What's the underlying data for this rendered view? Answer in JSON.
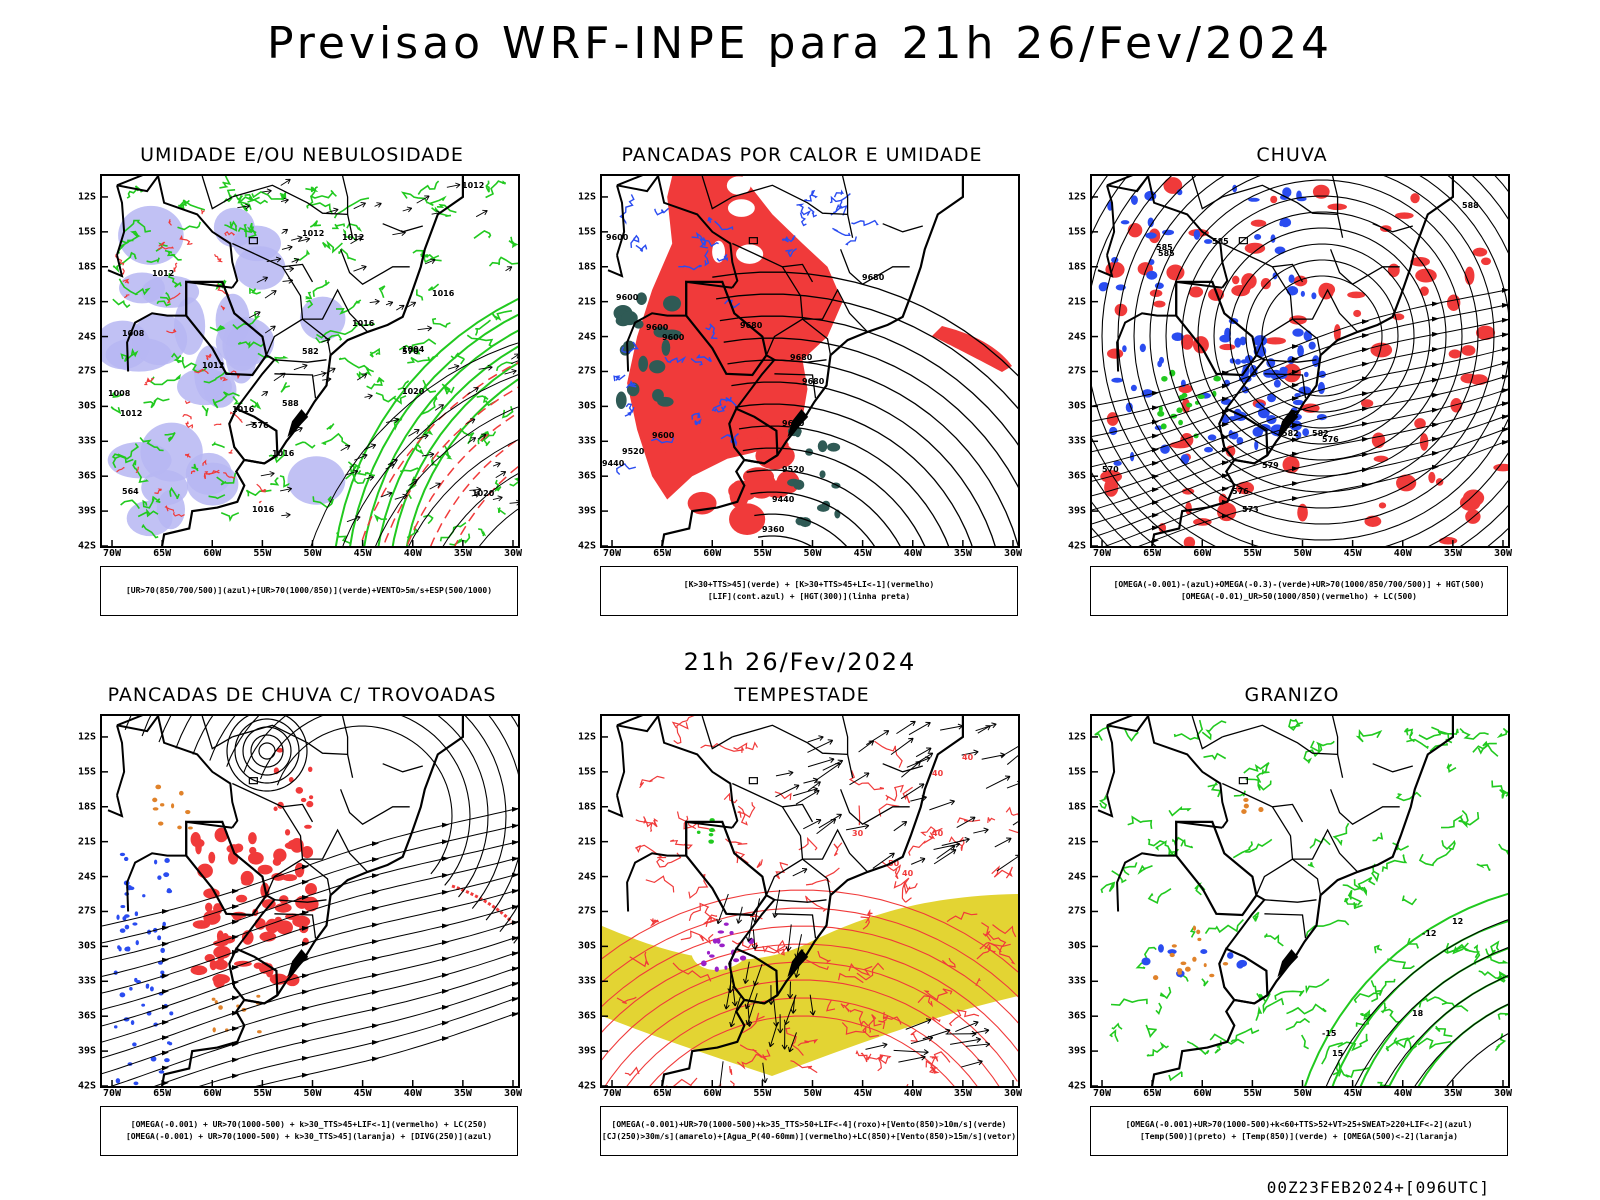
{
  "header": {
    "title": "Previsao WRF-INPE  para 21h 26/Fev/2024"
  },
  "middle": {
    "subtitle": "21h 26/Fev/2024"
  },
  "footer": {
    "run_info": "00Z23FEB2024+[096UTC]"
  },
  "axes": {
    "lat_labels": [
      "12S",
      "15S",
      "18S",
      "21S",
      "24S",
      "27S",
      "30S",
      "33S",
      "36S",
      "39S",
      "42S"
    ],
    "lon_labels": [
      "70W",
      "65W",
      "60W",
      "55W",
      "50W",
      "45W",
      "40W",
      "35W",
      "30W"
    ]
  },
  "colors": {
    "green": "#21c91f",
    "blue": "#2a4cf0",
    "red": "#f03a3a",
    "lavender": "#b6b6f2",
    "yellow": "#e3d433",
    "orange": "#e0822a",
    "darkteal": "#2f5a55",
    "purple": "#9a20c8"
  },
  "panels": [
    {
      "id": "umidade",
      "title": "UMIDADE E/OU NEBULOSIDADE",
      "legend": [
        "[UR>70(850/700/500)](azul)+[UR>70(1000/850)](verde)+VENTO>5m/s+ESP(500/1000)"
      ],
      "contour_labels": [
        "1012",
        "1012",
        "1012",
        "1012",
        "1016",
        "1016",
        "1004",
        "1008",
        "1012",
        "1016",
        "1020",
        "1020",
        "582",
        "576",
        "570",
        "564",
        "588",
        "1016",
        "1016",
        "1008",
        "1012"
      ]
    },
    {
      "id": "pancadas_calor",
      "title": "PANCADAS POR CALOR E UMIDADE",
      "legend": [
        "[K>30+TTS>45](verde) + [K>30+TTS>45+LI<-1](vermelho)",
        "[LIF](cont.azul) + [HGT(300)](linha preta)"
      ],
      "contour_labels": [
        "9600",
        "9600",
        "9600",
        "9680",
        "9680",
        "9680",
        "9600",
        "9520",
        "9440",
        "9600",
        "9520",
        "9440",
        "9360",
        "9680",
        "9600"
      ]
    },
    {
      "id": "chuva",
      "title": "CHUVA",
      "legend": [
        "[OMEGA(-0.001)-(azul)+OMEGA(-0.3)-(verde)+UR>70(1000/850/700/500)] + HGT(500)",
        "[OMEGA(-0.01)_UR>50(1000/850)(vermelho) + LC(500)"
      ],
      "contour_labels": [
        "585",
        "585",
        "588",
        "585",
        "582",
        "579",
        "576",
        "573",
        "570",
        "576",
        "582"
      ]
    },
    {
      "id": "pancadas_trovoadas",
      "title": "PANCADAS DE CHUVA C/ TROVOADAS",
      "legend": [
        "[OMEGA(-0.001) + UR>70(1000-500) + k>30_TTS>45+LIF<-1](vermelho) + LC(250)",
        "[OMEGA(-0.001) + UR>70(1000-500) + k>30_TTS>45](laranja) + [DIVG(250)](azul)"
      ],
      "contour_labels": []
    },
    {
      "id": "tempestade",
      "title": "TEMPESTADE",
      "legend": [
        "[OMEGA(-0.001)+UR>70(1000-500)+k>35_TTS>50+LIF<-4](roxo)+[Vento(850)>10m/s](verde)",
        "[CJ(250)>30m/s](amarelo)+[Agua_P(40-60mm)](vermelho)+LC(850)+[Vento(850)>15m/s](vetor)"
      ],
      "contour_labels": [
        "40",
        "40",
        "50",
        "40",
        "30",
        "40"
      ]
    },
    {
      "id": "granizo",
      "title": "GRANIZO",
      "legend": [
        "[OMEGA(-0.001)+UR>70(1000-500)+k<60+TTS>52+VT>25+SWEAT>220+LIF<-2](azul)",
        "[Temp(500)](preto) + [Temp(850)](verde) + [OMEGA(500)<-2](laranja)"
      ],
      "contour_labels": [
        "12",
        "18",
        "-15",
        "-12",
        "15"
      ]
    }
  ]
}
